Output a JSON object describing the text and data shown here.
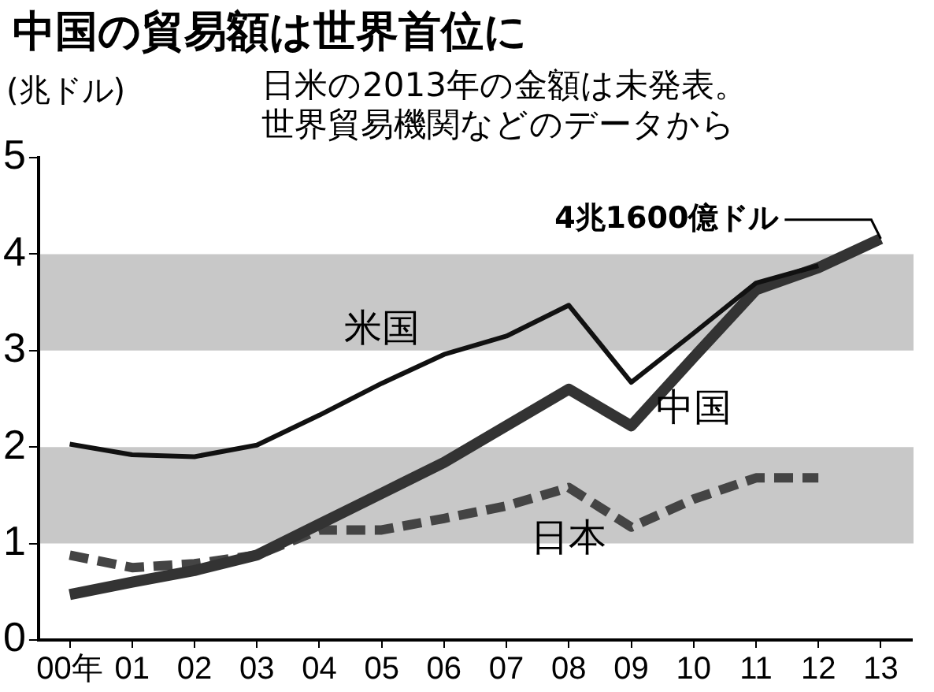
{
  "chart_data": {
    "type": "line",
    "title": "中国の貿易額は世界首位に",
    "subtitle": "日米の2013年の金額は未発表。世界貿易機関などのデータから",
    "ylabel": "(兆ドル)",
    "categories": [
      "00年",
      "01",
      "02",
      "03",
      "04",
      "05",
      "06",
      "07",
      "08",
      "09",
      "10",
      "11",
      "12",
      "13"
    ],
    "series": [
      {
        "name": "米国",
        "color": "#111111",
        "line_style": "solid",
        "values": [
          2.03,
          1.92,
          1.9,
          2.02,
          2.33,
          2.66,
          2.96,
          3.15,
          3.47,
          2.67,
          3.18,
          3.7,
          3.88,
          null
        ]
      },
      {
        "name": "中国",
        "color": "#333333",
        "line_style": "solid",
        "values": [
          0.47,
          0.6,
          0.72,
          0.88,
          1.2,
          1.52,
          1.84,
          2.22,
          2.6,
          2.22,
          2.93,
          3.63,
          3.86,
          4.16
        ]
      },
      {
        "name": "日本",
        "color": "#444444",
        "line_style": "dashed",
        "values": [
          0.88,
          0.75,
          0.79,
          0.88,
          1.14,
          1.14,
          1.26,
          1.39,
          1.58,
          1.17,
          1.46,
          1.68,
          1.68,
          null
        ]
      }
    ],
    "ylim": [
      0,
      5
    ],
    "yticks": [
      0,
      1,
      2,
      3,
      4,
      5
    ],
    "grid": false,
    "legend": false,
    "marker": "none",
    "bands": [
      {
        "axis": "y",
        "from": 1,
        "to": 2,
        "color": "#c8c8c8"
      },
      {
        "axis": "y",
        "from": 3,
        "to": 4,
        "color": "#c8c8c8"
      }
    ],
    "annotations": [
      {
        "text": "4兆1600億ドル",
        "x": "13",
        "y": 4.16
      }
    ]
  }
}
